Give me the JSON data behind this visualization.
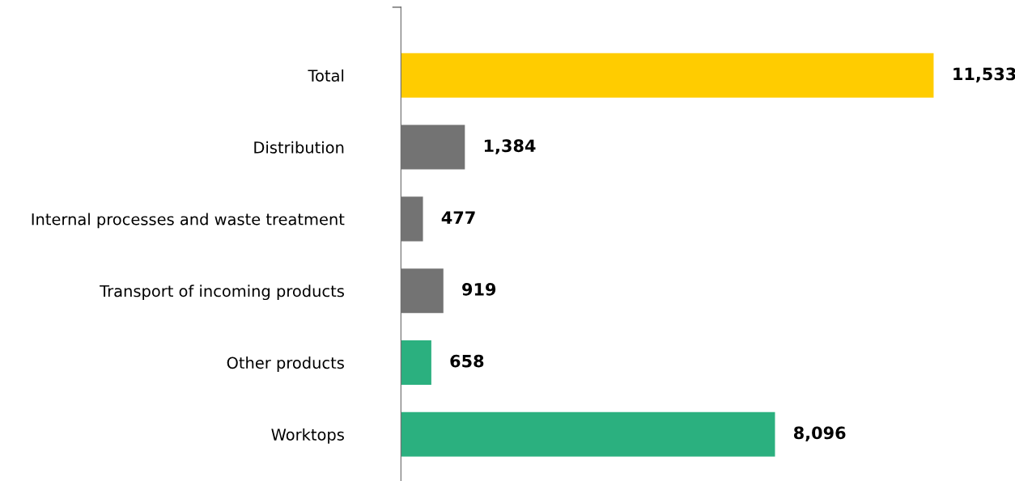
{
  "chart_data": {
    "type": "bar",
    "orientation": "horizontal",
    "categories": [
      "Total",
      "Distribution",
      "Internal processes and waste treatment",
      "Transport of incoming products",
      "Other products",
      "Worktops"
    ],
    "values": [
      11533,
      1384,
      477,
      919,
      658,
      8096
    ],
    "colors": [
      "#ffcc00",
      "#737373",
      "#737373",
      "#737373",
      "#2bb07f",
      "#2bb07f"
    ],
    "value_labels": [
      "11,533",
      "1,384",
      "477",
      "919",
      "658",
      "8,096"
    ],
    "tick_labels": "y",
    "grid": false,
    "legend": false
  }
}
